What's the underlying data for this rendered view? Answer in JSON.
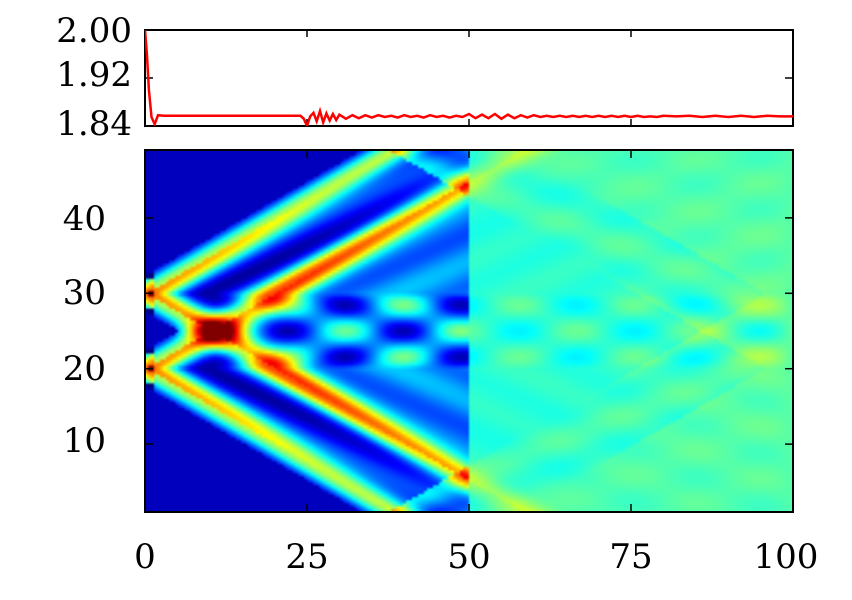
{
  "chart_data": [
    {
      "type": "line",
      "panel": "top",
      "xlim": [
        0,
        100
      ],
      "ylim": [
        1.84,
        2.0
      ],
      "yticks": [
        "2.00",
        "1.92",
        "1.84"
      ],
      "series": [
        {
          "color": "#ff0000",
          "x": [
            0,
            0.3,
            0.6,
            1,
            1.5,
            2,
            3,
            5,
            8,
            12,
            16,
            20,
            23,
            24,
            24.5,
            25,
            25.5,
            26,
            26.5,
            27,
            27.5,
            28,
            28.5,
            29,
            29.5,
            30,
            31,
            32,
            33,
            34,
            35,
            36,
            37,
            38,
            39,
            40,
            41,
            42,
            43,
            44,
            45,
            46,
            47,
            48,
            49,
            50,
            51,
            52,
            53,
            54,
            55,
            56,
            57,
            58,
            59,
            60,
            61,
            62,
            63,
            64,
            65,
            66,
            67,
            68,
            69,
            70,
            71,
            72,
            73,
            74,
            75,
            76,
            77,
            78,
            79,
            80,
            82,
            84,
            86,
            88,
            90,
            92,
            94,
            96,
            98,
            100
          ],
          "y": [
            2.0,
            1.96,
            1.9,
            1.855,
            1.843,
            1.858,
            1.857,
            1.857,
            1.857,
            1.857,
            1.857,
            1.857,
            1.857,
            1.857,
            1.852,
            1.84,
            1.856,
            1.862,
            1.848,
            1.865,
            1.846,
            1.861,
            1.849,
            1.86,
            1.85,
            1.859,
            1.852,
            1.858,
            1.853,
            1.858,
            1.854,
            1.858,
            1.855,
            1.857,
            1.854,
            1.858,
            1.855,
            1.857,
            1.854,
            1.858,
            1.855,
            1.857,
            1.854,
            1.857,
            1.855,
            1.86,
            1.853,
            1.859,
            1.853,
            1.86,
            1.852,
            1.859,
            1.853,
            1.858,
            1.854,
            1.858,
            1.855,
            1.857,
            1.855,
            1.857,
            1.855,
            1.857,
            1.855,
            1.857,
            1.855,
            1.857,
            1.855,
            1.857,
            1.855,
            1.857,
            1.855,
            1.857,
            1.855,
            1.856,
            1.855,
            1.857,
            1.856,
            1.857,
            1.855,
            1.857,
            1.855,
            1.857,
            1.855,
            1.857,
            1.856,
            1.856
          ]
        }
      ]
    },
    {
      "type": "heatmap",
      "panel": "bottom",
      "colormap": "jet",
      "xlim": [
        0,
        100
      ],
      "ylim": [
        1,
        49
      ],
      "xticks": [
        "0",
        "25",
        "50",
        "75",
        "100"
      ],
      "yticks": [
        "10",
        "20",
        "30",
        "40"
      ],
      "sources": [
        20,
        30
      ],
      "background_color": "#00007f"
    }
  ]
}
